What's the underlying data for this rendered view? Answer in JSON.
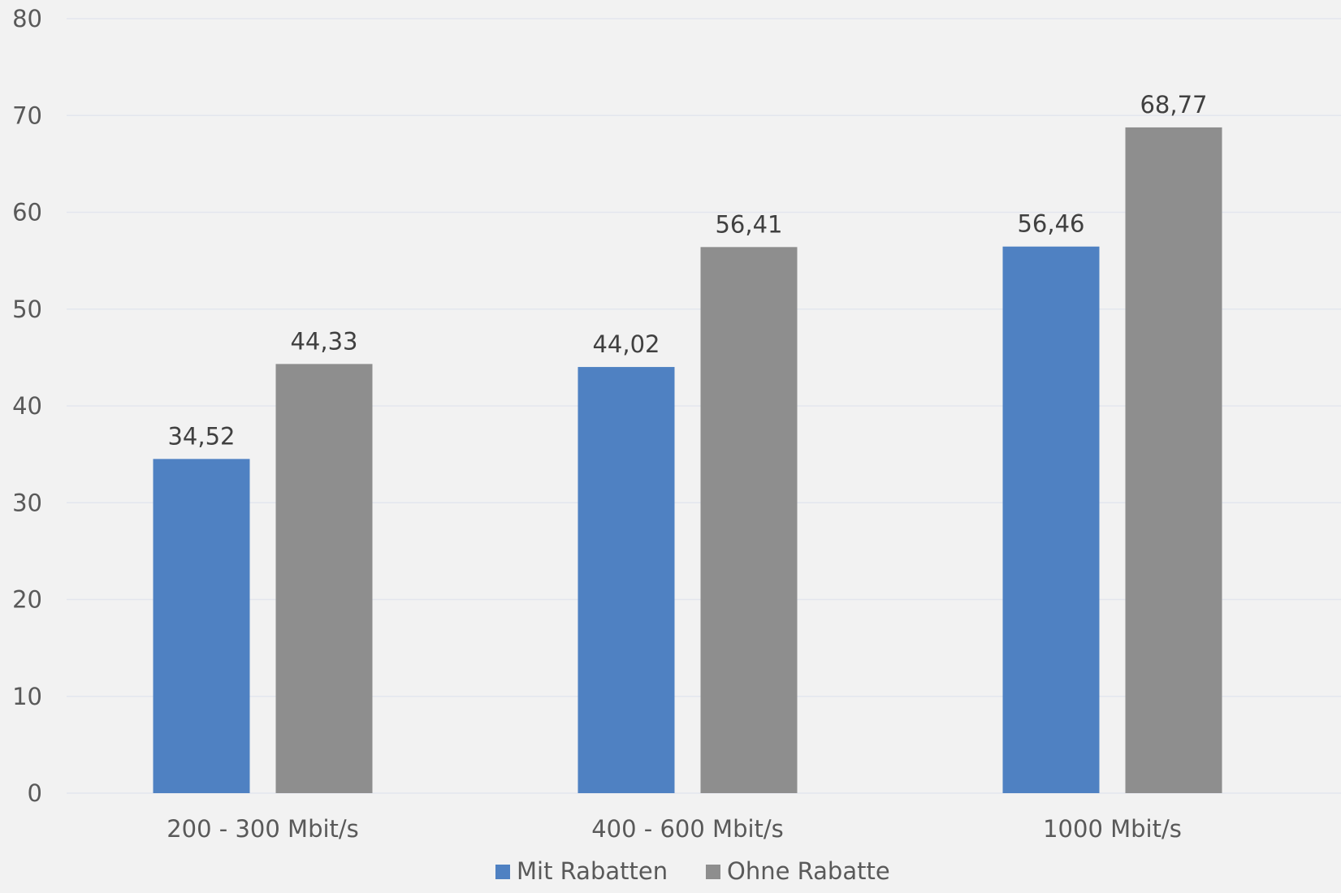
{
  "chart_data": {
    "type": "bar",
    "title": "",
    "xlabel": "",
    "ylabel": "",
    "ylim": [
      0,
      80
    ],
    "yticks": [
      0,
      10,
      20,
      30,
      40,
      50,
      60,
      70,
      80
    ],
    "yticks_labels": [
      "0",
      "10",
      "20",
      "30",
      "40",
      "50",
      "60",
      "70",
      "80"
    ],
    "grid": true,
    "legend_position": "bottom",
    "categories": [
      "200 - 300 Mbit/s",
      "400 - 600 Mbit/s",
      "1000 Mbit/s"
    ],
    "series": [
      {
        "name": "Mit Rabatten",
        "color": "#4f81c2",
        "values": [
          34.52,
          44.02,
          56.46
        ],
        "labels": [
          "34,52",
          "44,02",
          "56,46"
        ]
      },
      {
        "name": "Ohne Rabatte",
        "color": "#8e8e8e",
        "values": [
          44.33,
          56.41,
          68.77
        ],
        "labels": [
          "44,33",
          "56,41",
          "68,77"
        ]
      }
    ]
  }
}
